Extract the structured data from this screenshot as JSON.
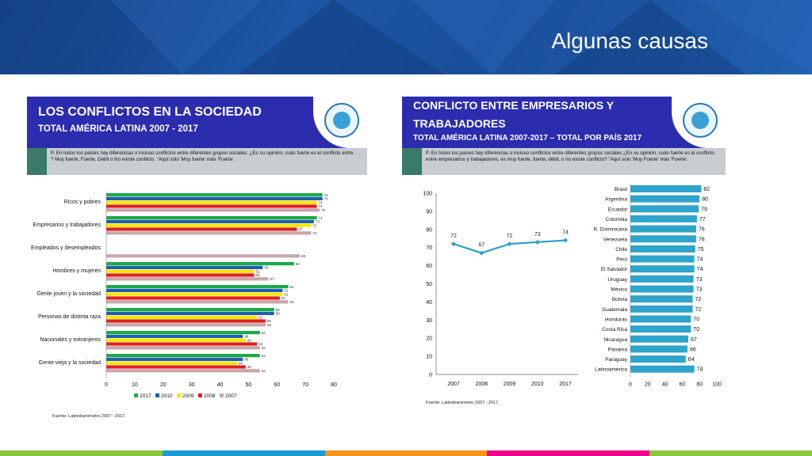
{
  "slide": {
    "title": "Algunas causas"
  },
  "footer_colors": [
    "#8cc63f",
    "#1c9ad6",
    "#f7941d",
    "#ec008c",
    "#8dc63f"
  ],
  "left_panel": {
    "title_line1": "LOS CONFLICTOS EN LA SOCIEDAD",
    "title_line2": "TOTAL AMÉRICA LATINA 2007 - 2017",
    "question": "P. En todos los países hay diferencias o incluso conflictos entre diferentes grupos sociales. ¿En su opinión, cuán fuerte es el conflicto entre. . . ? Muy fuerte, Fuerte, Débil o No existe conflicto. \"Aquí sólo 'Muy fuerte' más 'Fuerte'.",
    "source": "Fuente: Latinobarómetro 2007 - 2017."
  },
  "right_panel": {
    "title_line1": "CONFLICTO ENTRE EMPRESARIOS Y",
    "title_line2": "TRABAJADORES",
    "title_line3": "TOTAL AMÉRICA LATINA 2007-2017 – TOTAL POR PAÍS 2017",
    "question": "P. En todos los países hay diferencias o incluso conflictos entre diferentes grupos sociales ¿En su opinión, cuán fuerte es el conflicto entre empresarios y trabajadores, es muy fuerte, fuerte, débil, o no existe conflicto? \"Aquí sólo 'Muy Fuerte' más 'Fuerte'.",
    "source": "Fuente: Latinobarómetro 2007 - 2017."
  },
  "chart_data": [
    {
      "type": "bar",
      "orientation": "horizontal",
      "categories": [
        "Ricos y pobres",
        "Empresarios y trabajadores",
        "Empleados y desempleados",
        "Hombres y mujeres",
        "Gente joven y la sociedad",
        "Personas de distinta raza",
        "Nacionales y extranjeros",
        "Gente vieja y la sociedad"
      ],
      "series": [
        {
          "name": "2017",
          "color": "#1aaa4a",
          "values": [
            76,
            74,
            null,
            66,
            64,
            59,
            54,
            54
          ]
        },
        {
          "name": "2010",
          "color": "#1f5fb0",
          "values": [
            76,
            73,
            null,
            55,
            62,
            59,
            48,
            48
          ]
        },
        {
          "name": "2009",
          "color": "#ffe600",
          "values": [
            74,
            72,
            null,
            52,
            62,
            53,
            49,
            46
          ]
        },
        {
          "name": "2008",
          "color": "#e02020",
          "values": [
            74,
            67,
            null,
            52,
            61,
            56,
            53,
            49
          ]
        },
        {
          "name": "2007",
          "color": "#c8a6ad",
          "values": [
            75,
            72,
            68,
            57,
            64,
            56,
            54,
            54
          ]
        }
      ],
      "xlim": [
        0,
        80
      ],
      "xticks": [
        0,
        10,
        20,
        30,
        40,
        50,
        60,
        70,
        80
      ],
      "legend": "bottom"
    },
    {
      "type": "line",
      "x": [
        "2007",
        "2008",
        "2009",
        "2010",
        "2017"
      ],
      "series": [
        {
          "color": "#2c9fc9",
          "values": [
            72,
            67,
            72,
            73,
            74
          ]
        }
      ],
      "ylim": [
        0,
        100
      ],
      "yticks": [
        0,
        10,
        20,
        30,
        40,
        50,
        60,
        70,
        80,
        90,
        100
      ],
      "grid": false
    },
    {
      "type": "bar",
      "orientation": "horizontal",
      "categories": [
        "Brasil",
        "Argentina",
        "Ecuador",
        "Colombia",
        "R. Dominicana",
        "Venezuela",
        "Chile",
        "Perú",
        "El Salvador",
        "Uruguay",
        "México",
        "Bolivia",
        "Guatemala",
        "Honduras",
        "Costa Rica",
        "Nicaragua",
        "Panamá",
        "Paraguay",
        "Latinoamérica"
      ],
      "values": [
        82,
        80,
        79,
        77,
        76,
        76,
        75,
        74,
        74,
        73,
        73,
        72,
        72,
        70,
        70,
        67,
        66,
        64,
        74
      ],
      "color": "#2ea3cb",
      "xlim": [
        0,
        100
      ],
      "xticks": [
        0,
        20,
        40,
        60,
        80,
        100
      ]
    }
  ]
}
